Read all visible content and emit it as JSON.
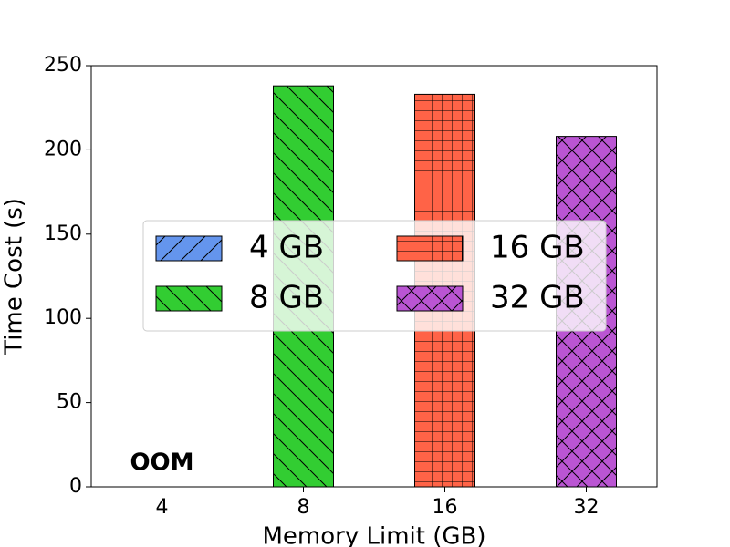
{
  "chart_data": {
    "type": "bar",
    "categories": [
      "4",
      "8",
      "16",
      "32"
    ],
    "series": [
      {
        "name": "4 GB",
        "color": "#6495ed",
        "hatch": "/",
        "values": [
          0,
          null,
          null,
          null
        ]
      },
      {
        "name": "8 GB",
        "color": "#32cd32",
        "hatch": "\\",
        "values": [
          null,
          238,
          null,
          null
        ]
      },
      {
        "name": "16 GB",
        "color": "#ff6347",
        "hatch": "+",
        "values": [
          null,
          null,
          233,
          null
        ]
      },
      {
        "name": "32 GB",
        "color": "#ba55d3",
        "hatch": "x",
        "values": [
          null,
          null,
          null,
          208
        ]
      }
    ],
    "annotation": "OOM",
    "annotation_color": "#ff0000",
    "x_label": "Memory Limit (GB)",
    "y_label": "Time Cost (s)",
    "ylim": [
      0,
      250
    ],
    "yticks": [
      0,
      50,
      100,
      150,
      200,
      250
    ],
    "grid": false,
    "legend_position": "center"
  }
}
